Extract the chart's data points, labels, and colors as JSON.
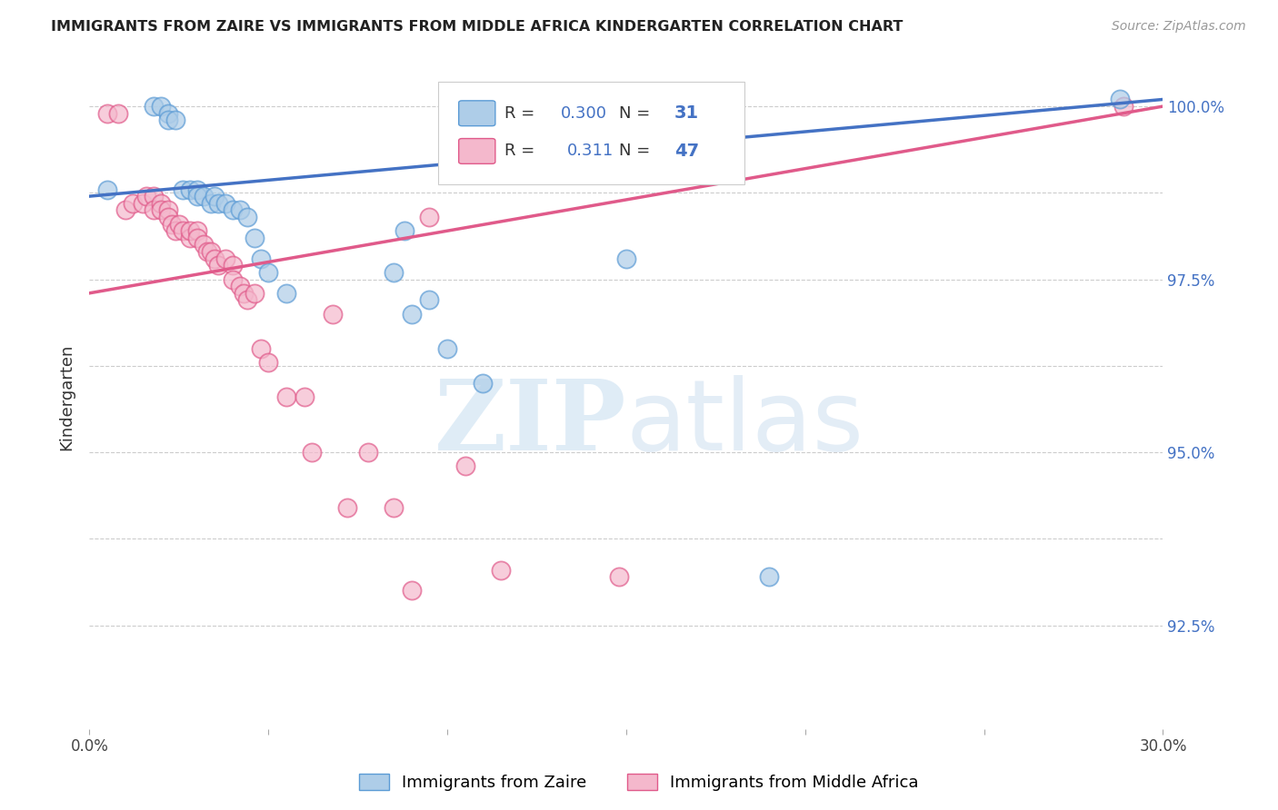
{
  "title": "IMMIGRANTS FROM ZAIRE VS IMMIGRANTS FROM MIDDLE AFRICA KINDERGARTEN CORRELATION CHART",
  "source": "Source: ZipAtlas.com",
  "ylabel": "Kindergarten",
  "xlim": [
    0.0,
    0.3
  ],
  "ylim": [
    0.91,
    1.006
  ],
  "zaire_color": "#aecde8",
  "zaire_edge_color": "#5b9bd5",
  "middle_africa_color": "#f4b8cc",
  "middle_africa_edge_color": "#e05a8a",
  "zaire_line_color": "#4472c4",
  "middle_africa_line_color": "#e05a8a",
  "right_axis_color": "#4472c4",
  "zaire_R": 0.3,
  "zaire_N": 31,
  "middle_africa_R": 0.311,
  "middle_africa_N": 47,
  "legend_label_zaire": "Immigrants from Zaire",
  "legend_label_middle_africa": "Immigrants from Middle Africa",
  "background_color": "#ffffff",
  "grid_color": "#cccccc",
  "zaire_x": [
    0.005,
    0.018,
    0.02,
    0.022,
    0.022,
    0.024,
    0.026,
    0.028,
    0.03,
    0.03,
    0.032,
    0.034,
    0.035,
    0.036,
    0.038,
    0.04,
    0.042,
    0.044,
    0.046,
    0.048,
    0.05,
    0.055,
    0.085,
    0.088,
    0.09,
    0.095,
    0.1,
    0.11,
    0.15,
    0.19,
    0.288
  ],
  "zaire_y": [
    0.988,
    1.0,
    1.0,
    0.999,
    0.998,
    0.998,
    0.988,
    0.988,
    0.988,
    0.987,
    0.987,
    0.986,
    0.987,
    0.986,
    0.986,
    0.985,
    0.985,
    0.984,
    0.981,
    0.978,
    0.976,
    0.973,
    0.976,
    0.982,
    0.97,
    0.972,
    0.965,
    0.96,
    0.978,
    0.932,
    1.001
  ],
  "middle_africa_x": [
    0.005,
    0.008,
    0.01,
    0.012,
    0.015,
    0.016,
    0.018,
    0.018,
    0.02,
    0.02,
    0.022,
    0.022,
    0.023,
    0.024,
    0.025,
    0.026,
    0.028,
    0.028,
    0.03,
    0.03,
    0.032,
    0.033,
    0.034,
    0.035,
    0.036,
    0.038,
    0.04,
    0.04,
    0.042,
    0.043,
    0.044,
    0.046,
    0.048,
    0.05,
    0.055,
    0.06,
    0.062,
    0.068,
    0.072,
    0.078,
    0.085,
    0.09,
    0.095,
    0.105,
    0.115,
    0.148,
    0.289
  ],
  "middle_africa_y": [
    0.999,
    0.999,
    0.985,
    0.986,
    0.986,
    0.987,
    0.987,
    0.985,
    0.986,
    0.985,
    0.985,
    0.984,
    0.983,
    0.982,
    0.983,
    0.982,
    0.981,
    0.982,
    0.982,
    0.981,
    0.98,
    0.979,
    0.979,
    0.978,
    0.977,
    0.978,
    0.977,
    0.975,
    0.974,
    0.973,
    0.972,
    0.973,
    0.965,
    0.963,
    0.958,
    0.958,
    0.95,
    0.97,
    0.942,
    0.95,
    0.942,
    0.93,
    0.984,
    0.948,
    0.933,
    0.932,
    1.0
  ]
}
